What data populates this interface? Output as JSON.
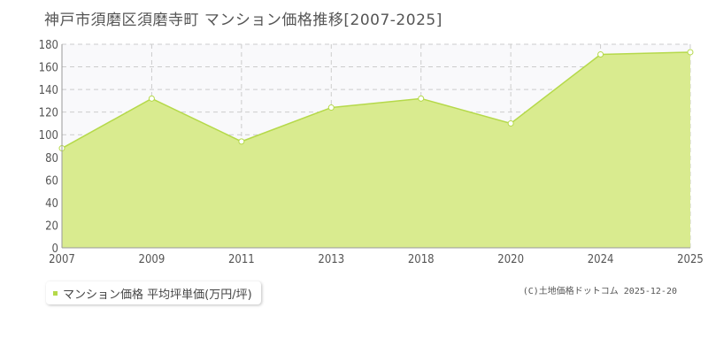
{
  "chart_data": {
    "type": "area",
    "title": "神戸市須磨区須磨寺町 マンション価格推移[2007-2025]",
    "categories": [
      "2007",
      "2009",
      "2011",
      "2013",
      "2018",
      "2020",
      "2024",
      "2025"
    ],
    "series": [
      {
        "name": "マンション価格 平均坪単価(万円/坪)",
        "values": [
          88,
          132,
          94,
          124,
          132,
          110,
          171,
          173
        ]
      }
    ],
    "y_ticks": [
      "0",
      "20",
      "40",
      "60",
      "80",
      "100",
      "120",
      "140",
      "160",
      "180"
    ],
    "ylim": [
      0,
      180
    ],
    "xlabel": "",
    "ylabel": "",
    "grid": true,
    "legend_position": "bottom-left",
    "colors": {
      "fill": "#d9eb8f",
      "line": "#b5d94a",
      "marker_fill": "#ffffff",
      "grid": "#cccccc",
      "plot_background": "#f9f9fb"
    }
  },
  "legend": {
    "label": "マンション価格 平均坪単価(万円/坪)"
  },
  "source": "(C)土地価格ドットコム 2025-12-20"
}
